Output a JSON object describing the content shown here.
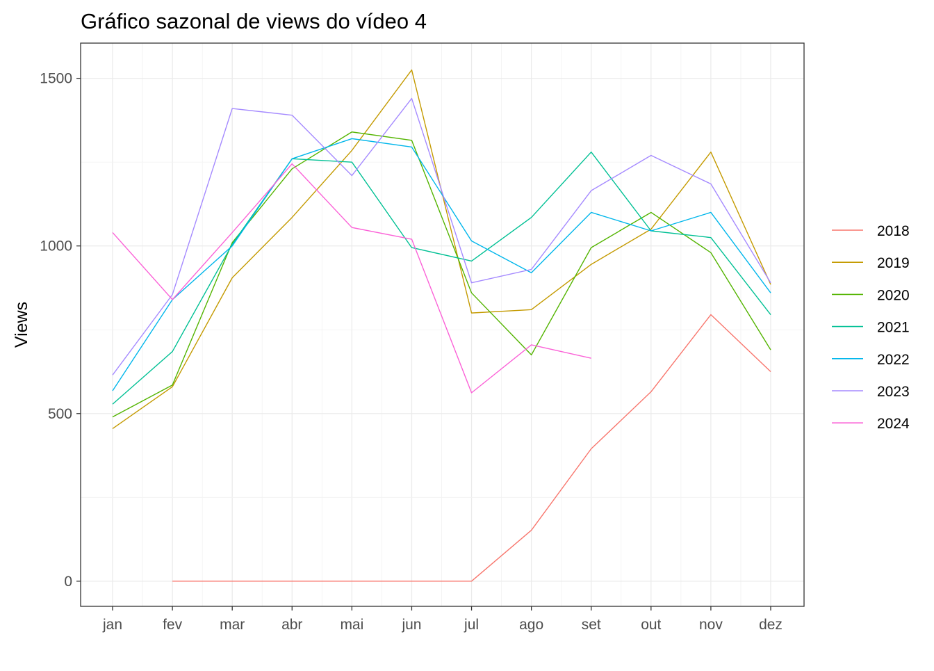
{
  "chart_data": {
    "type": "line",
    "title": "Gráfico sazonal de views do vídeo 4",
    "xlabel": "",
    "ylabel": "Views",
    "categories": [
      "jan",
      "fev",
      "mar",
      "abr",
      "mai",
      "jun",
      "jul",
      "ago",
      "set",
      "out",
      "nov",
      "dez"
    ],
    "ylim": [
      -75,
      1605
    ],
    "yticks": [
      0,
      500,
      1000,
      1500
    ],
    "grid": true,
    "legend_position": "right",
    "series": [
      {
        "name": "2018",
        "color": "#F8766D",
        "values": [
          null,
          0,
          0,
          0,
          0,
          0,
          0,
          152,
          395,
          565,
          795,
          625
        ]
      },
      {
        "name": "2019",
        "color": "#C49A00",
        "values": [
          455,
          580,
          905,
          1085,
          1285,
          1525,
          800,
          810,
          945,
          1050,
          1280,
          885
        ]
      },
      {
        "name": "2020",
        "color": "#53B400",
        "values": [
          490,
          585,
          1010,
          1230,
          1340,
          1315,
          860,
          675,
          995,
          1100,
          980,
          690
        ]
      },
      {
        "name": "2021",
        "color": "#00C094",
        "values": [
          528,
          685,
          1005,
          1260,
          1250,
          995,
          955,
          1085,
          1280,
          1045,
          1025,
          795
        ]
      },
      {
        "name": "2022",
        "color": "#00B6EB",
        "values": [
          568,
          840,
          1000,
          1260,
          1320,
          1295,
          1015,
          920,
          1100,
          1045,
          1100,
          860
        ]
      },
      {
        "name": "2023",
        "color": "#A58AFF",
        "values": [
          615,
          855,
          1410,
          1390,
          1210,
          1440,
          890,
          930,
          1165,
          1270,
          1185,
          890
        ]
      },
      {
        "name": "2024",
        "color": "#FB61D7",
        "values": [
          1040,
          840,
          1040,
          1245,
          1055,
          1020,
          562,
          705,
          665,
          null,
          null,
          null
        ]
      }
    ]
  }
}
